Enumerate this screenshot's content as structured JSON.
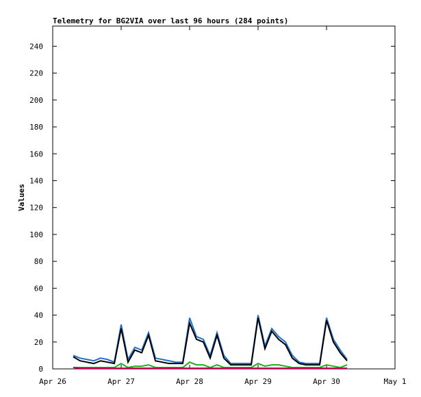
{
  "chart_data": {
    "type": "line",
    "title": "Telemetry for BG2VIA over last 96 hours (284 points)",
    "y_label": "Values",
    "x": [
      0.3,
      0.4,
      0.5,
      0.6,
      0.7,
      0.8,
      0.9,
      1.0,
      1.1,
      1.2,
      1.3,
      1.4,
      1.5,
      1.6,
      1.7,
      1.8,
      1.9,
      2.0,
      2.1,
      2.2,
      2.3,
      2.4,
      2.5,
      2.6,
      2.7,
      2.8,
      2.9,
      3.0,
      3.1,
      3.2,
      3.3,
      3.4,
      3.5,
      3.6,
      3.7,
      3.8,
      3.9,
      4.0,
      4.1,
      4.2,
      4.3
    ],
    "series": [
      {
        "color": "#1f6fc8",
        "values": [
          10,
          8,
          7,
          6,
          8,
          7,
          5,
          33,
          7,
          16,
          14,
          27,
          8,
          7,
          6,
          5,
          5,
          38,
          24,
          22,
          10,
          27,
          10,
          4,
          4,
          4,
          4,
          40,
          17,
          30,
          24,
          20,
          10,
          5,
          4,
          4,
          4,
          38,
          22,
          14,
          7
        ]
      },
      {
        "color": "#000000",
        "values": [
          9,
          6,
          5,
          4,
          6,
          5,
          4,
          30,
          5,
          14,
          12,
          25,
          6,
          5,
          4,
          4,
          4,
          34,
          22,
          20,
          8,
          25,
          8,
          3,
          3,
          3,
          3,
          38,
          15,
          28,
          22,
          18,
          8,
          4,
          3,
          3,
          3,
          36,
          20,
          12,
          6
        ]
      },
      {
        "color": "#22aa22",
        "values": [
          1,
          1,
          1,
          1,
          1,
          1,
          1,
          4,
          1,
          2,
          2,
          3,
          1,
          1,
          1,
          1,
          1,
          5,
          3,
          3,
          1,
          3,
          1,
          1,
          1,
          1,
          1,
          4,
          2,
          3,
          3,
          2,
          1,
          1,
          1,
          1,
          1,
          3,
          2,
          1,
          3
        ]
      },
      {
        "color": "#cc0055",
        "values": [
          1,
          0.5,
          0.5,
          0.5,
          0.5,
          0.5,
          0.5,
          0.5,
          0.5,
          0.5,
          0.5,
          0.5,
          0.5,
          0.5,
          0.5,
          0.5,
          0.5,
          0.5,
          0.5,
          0.5,
          0.5,
          0.5,
          0.5,
          0.5,
          0.5,
          0.5,
          0.5,
          0.5,
          0.5,
          0.5,
          0.5,
          0.5,
          0.5,
          0.5,
          0.5,
          0.5,
          0.5,
          0.5,
          0.5,
          0.5,
          0.5
        ]
      }
    ],
    "xlim": [
      0,
      5
    ],
    "xticks": [
      {
        "value": 0,
        "label": "Apr 26"
      },
      {
        "value": 1,
        "label": "Apr 27"
      },
      {
        "value": 2,
        "label": "Apr 28"
      },
      {
        "value": 3,
        "label": "Apr 29"
      },
      {
        "value": 4,
        "label": "Apr 30"
      },
      {
        "value": 5,
        "label": "May 1"
      }
    ],
    "ylim": [
      0,
      255
    ],
    "yticks": [
      0,
      20,
      40,
      60,
      80,
      100,
      120,
      140,
      160,
      180,
      200,
      220,
      240
    ]
  }
}
